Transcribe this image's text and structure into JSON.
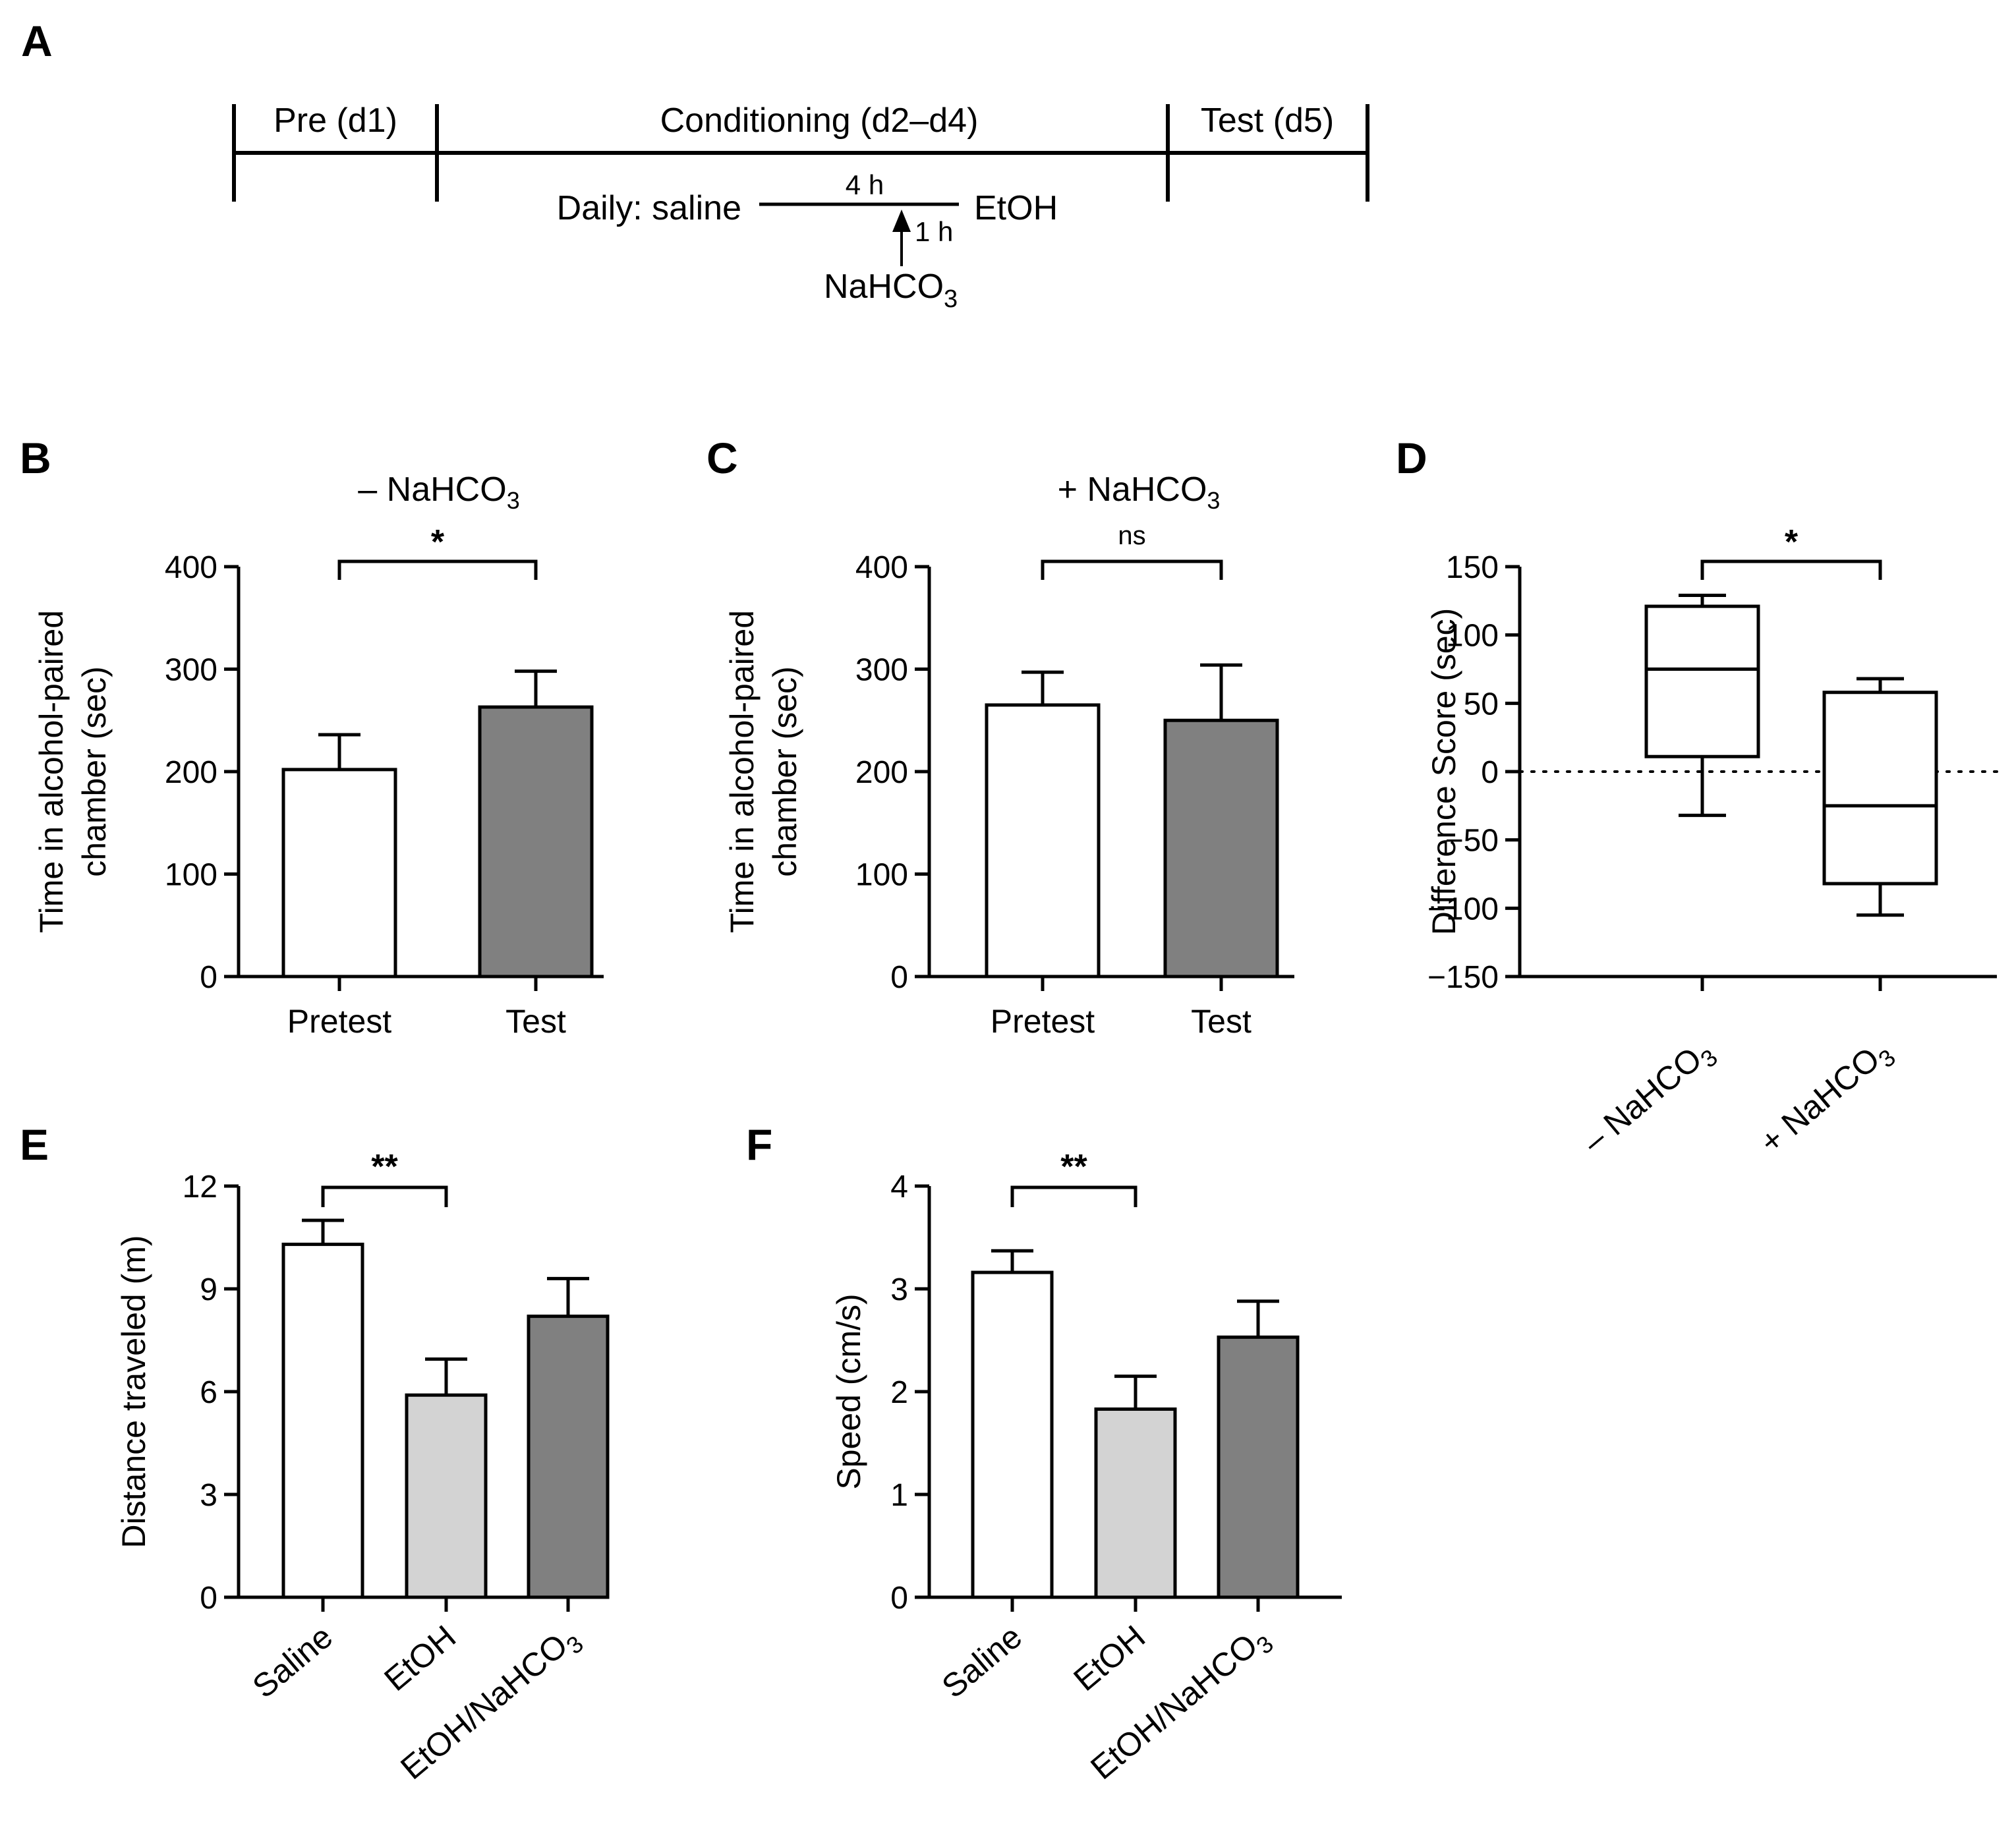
{
  "colors": {
    "white_bar": "#ffffff",
    "light_bar": "#d3d3d3",
    "dark_bar": "#808080",
    "ink": "#000000"
  },
  "panelA": {
    "label": "A",
    "phases": [
      "Pre (d1)",
      "Conditioning (d2–d4)",
      "Test (d5)"
    ],
    "daily_left": "Daily: saline",
    "gap_label": "4 h",
    "daily_right": "EtOH",
    "arrow_label": "1 h",
    "drug_main": "NaHCO",
    "drug_sub": "3"
  },
  "chart_data": [
    {
      "panel": "B",
      "type": "bar",
      "title": "– NaHCO",
      "title_sub": "3",
      "ylabel_lines": [
        "Time in alcohol-paired",
        "chamber (sec)"
      ],
      "ylim": [
        0,
        400
      ],
      "yticks": [
        0,
        100,
        200,
        300,
        400
      ],
      "ytick_labels": [
        "0",
        "100",
        "200",
        "300",
        "400"
      ],
      "categories": [
        "Pretest",
        "Test"
      ],
      "values": [
        202,
        263
      ],
      "errors": [
        34,
        35
      ],
      "fills": [
        "white",
        "dark"
      ],
      "significance": {
        "between": [
          0,
          1
        ],
        "label": "*"
      }
    },
    {
      "panel": "C",
      "type": "bar",
      "title": "+ NaHCO",
      "title_sub": "3",
      "ylabel_lines": [
        "Time in alcohol-paired",
        "chamber (sec)"
      ],
      "ylim": [
        0,
        400
      ],
      "yticks": [
        0,
        100,
        200,
        300,
        400
      ],
      "ytick_labels": [
        "0",
        "100",
        "200",
        "300",
        "400"
      ],
      "categories": [
        "Pretest",
        "Test"
      ],
      "values": [
        265,
        250
      ],
      "errors": [
        32,
        54
      ],
      "fills": [
        "white",
        "dark"
      ],
      "significance": {
        "between": [
          0,
          1
        ],
        "label": "ns"
      }
    },
    {
      "panel": "D",
      "type": "box",
      "ylabel": "Difference Score (sec)",
      "ylim": [
        -150,
        150
      ],
      "yticks": [
        -150,
        -100,
        -50,
        0,
        50,
        100,
        150
      ],
      "ytick_labels": [
        "−150",
        "−100",
        "−50",
        "0",
        "50",
        "100",
        "150"
      ],
      "categories": [
        {
          "main": "– NaHCO",
          "sub": "3"
        },
        {
          "main": "+ NaHCO",
          "sub": "3"
        }
      ],
      "boxes": [
        {
          "min": -32,
          "q1": 11,
          "median": 75,
          "q3": 121,
          "max": 129
        },
        {
          "min": -105,
          "q1": -82,
          "median": -25,
          "q3": 58,
          "max": 68
        }
      ],
      "reference_line": 0,
      "significance": {
        "between": [
          0,
          1
        ],
        "label": "*"
      }
    },
    {
      "panel": "E",
      "type": "bar",
      "ylabel": "Distance traveled (m)",
      "ylim": [
        0,
        12
      ],
      "yticks": [
        0,
        3,
        6,
        9,
        12
      ],
      "ytick_labels": [
        "0",
        "3",
        "6",
        "9",
        "12"
      ],
      "categories": [
        {
          "main": "Saline"
        },
        {
          "main": "EtOH"
        },
        {
          "main": "EtOH/NaHCO",
          "sub": "3"
        }
      ],
      "values": [
        10.3,
        5.9,
        8.2
      ],
      "errors": [
        0.7,
        1.05,
        1.1
      ],
      "fills": [
        "white",
        "light",
        "dark"
      ],
      "significance": {
        "between": [
          0,
          1
        ],
        "label": "**"
      }
    },
    {
      "panel": "F",
      "type": "bar",
      "ylabel": "Speed (cm/s)",
      "ylim": [
        0,
        4
      ],
      "yticks": [
        0,
        1,
        2,
        3,
        4
      ],
      "ytick_labels": [
        "0",
        "1",
        "2",
        "3",
        "4"
      ],
      "categories": [
        {
          "main": "Saline"
        },
        {
          "main": "EtOH"
        },
        {
          "main": "EtOH/NaHCO",
          "sub": "3"
        }
      ],
      "values": [
        3.16,
        1.83,
        2.53
      ],
      "errors": [
        0.21,
        0.32,
        0.35
      ],
      "fills": [
        "white",
        "light",
        "dark"
      ],
      "significance": {
        "between": [
          0,
          1
        ],
        "label": "**"
      }
    }
  ]
}
